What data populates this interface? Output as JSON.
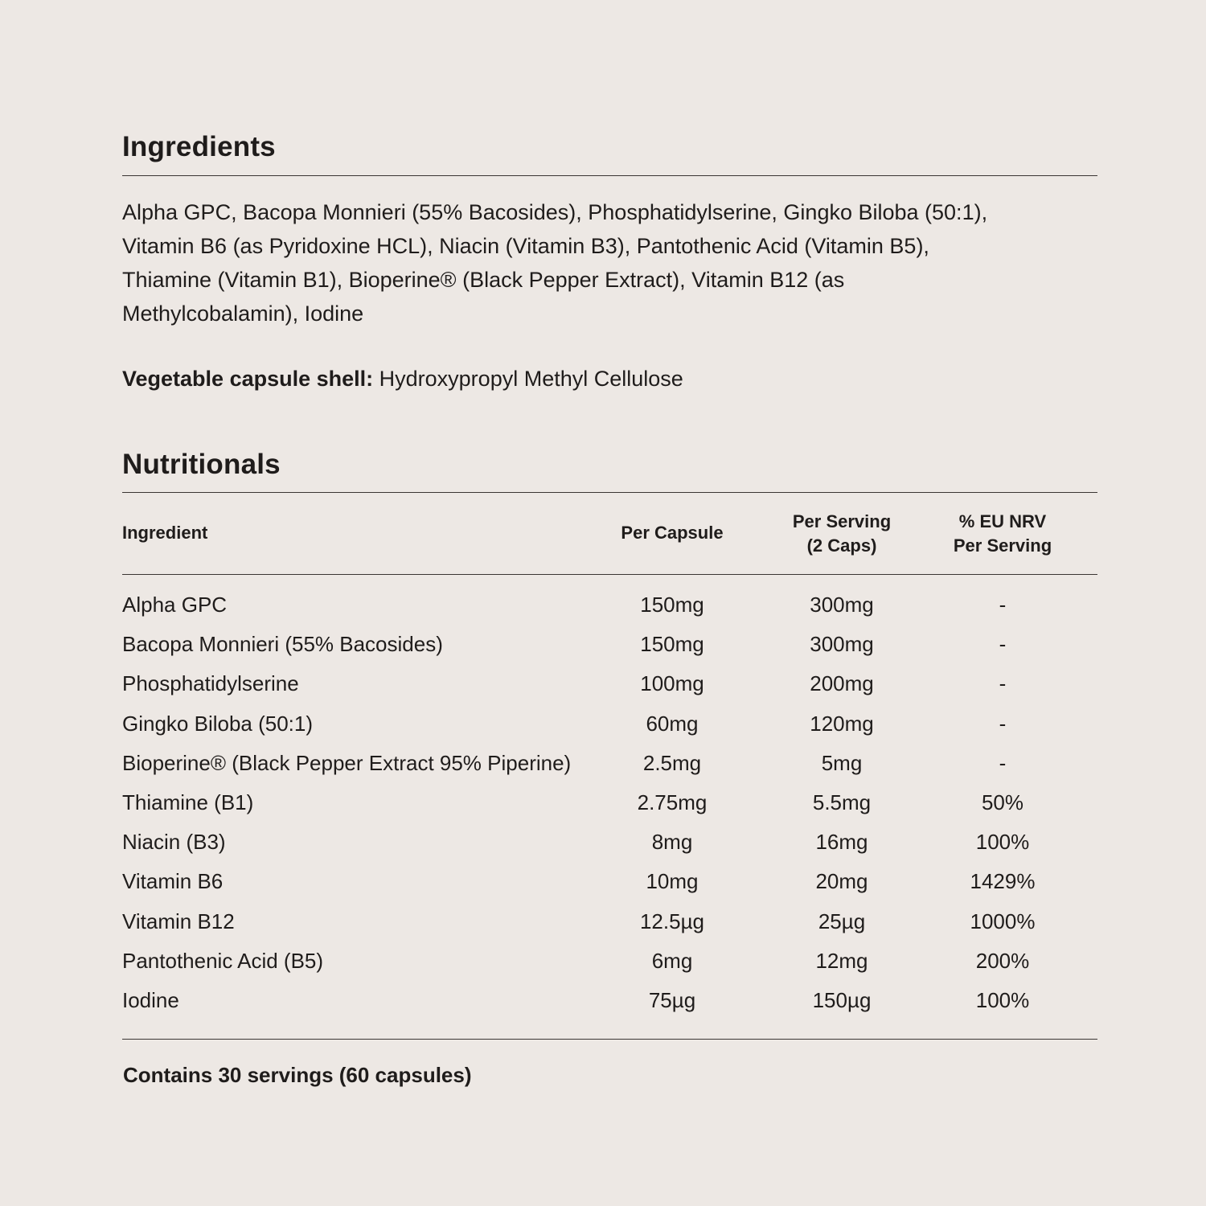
{
  "ingredients": {
    "title": "Ingredients",
    "lines": [
      "Alpha GPC, Bacopa Monnieri (55% Bacosides), Phosphatidylserine, Gingko Biloba (50:1),",
      "Vitamin B6 (as Pyridoxine HCL), Niacin (Vitamin B3), Pantothenic Acid (Vitamin B5),",
      "Thiamine (Vitamin B1), Bioperine® (Black Pepper Extract), Vitamin B12 (as",
      "Methylcobalamin), Iodine"
    ],
    "capsule_label": "Vegetable capsule shell:",
    "capsule_value": " Hydroxypropyl Methyl Cellulose"
  },
  "nutritionals": {
    "title": "Nutritionals",
    "headers": [
      "Ingredient",
      "Per Capsule",
      "Per Serving\n(2 Caps)",
      "% EU NRV\nPer Serving"
    ],
    "rows": [
      [
        "Alpha GPC",
        "150mg",
        "300mg",
        "-"
      ],
      [
        "Bacopa Monnieri (55% Bacosides)",
        "150mg",
        "300mg",
        "-"
      ],
      [
        "Phosphatidylserine",
        "100mg",
        "200mg",
        "-"
      ],
      [
        "Gingko Biloba (50:1)",
        "60mg",
        "120mg",
        "-"
      ],
      [
        "Bioperine® (Black Pepper Extract 95% Piperine)",
        "2.5mg",
        "5mg",
        "-"
      ],
      [
        "Thiamine (B1)",
        "2.75mg",
        "5.5mg",
        "50%"
      ],
      [
        "Niacin (B3)",
        "8mg",
        "16mg",
        "100%"
      ],
      [
        "Vitamin B6",
        "10mg",
        "20mg",
        "1429%"
      ],
      [
        "Vitamin B12",
        "12.5µg",
        "25µg",
        "1000%"
      ],
      [
        "Pantothenic Acid (B5)",
        "6mg",
        "12mg",
        "200%"
      ],
      [
        "Iodine",
        "75µg",
        "150µg",
        "100%"
      ]
    ],
    "footer": "Contains 30 servings (60 capsules)"
  }
}
